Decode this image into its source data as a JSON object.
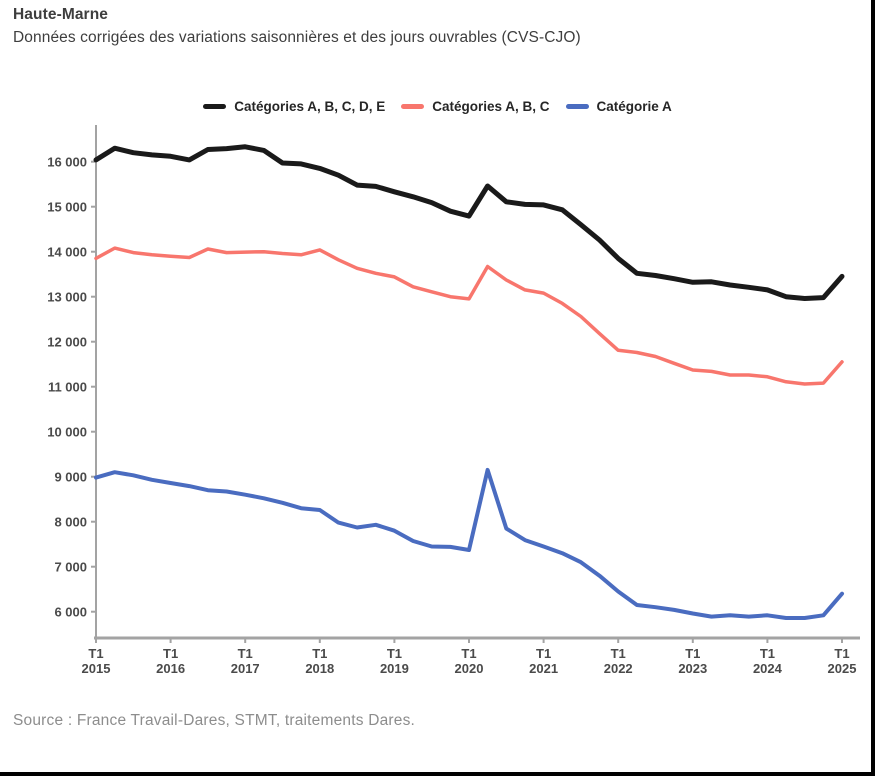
{
  "header": {
    "title": "Haute-Marne",
    "subtitle": "Données corrigées des variations saisonnières et des jours ouvrables (CVS-CJO)"
  },
  "legend": {
    "items": [
      {
        "label": "Catégories A, B, C, D, E",
        "color": "#1a1a1a"
      },
      {
        "label": "Catégories A, B, C",
        "color": "#f8766d"
      },
      {
        "label": "Catégorie A",
        "color": "#4a6cc0"
      }
    ]
  },
  "source": {
    "text": "Source : France Travail-Dares, STMT, traitements Dares."
  },
  "chart_data": {
    "type": "line",
    "grid": false,
    "legend_position": "top",
    "axis_color": "#a3a3a3",
    "tick_label_color": "#4a4a4a",
    "ylim": [
      5416,
      16816
    ],
    "y_ticks": [
      16000,
      15000,
      14000,
      13000,
      12000,
      11000,
      10000,
      9000,
      8000,
      7000,
      6000
    ],
    "y_tick_labels": [
      "16 000",
      "15 000",
      "14 000",
      "13 000",
      "12 000",
      "11 000",
      "10 000",
      "9 000",
      "8 000",
      "7 000",
      "6 000"
    ],
    "x_tick_labels": [
      {
        "quarter": "T1",
        "year": "2015"
      },
      {
        "quarter": "T1",
        "year": "2016"
      },
      {
        "quarter": "T1",
        "year": "2017"
      },
      {
        "quarter": "T1",
        "year": "2018"
      },
      {
        "quarter": "T1",
        "year": "2019"
      },
      {
        "quarter": "T1",
        "year": "2020"
      },
      {
        "quarter": "T1",
        "year": "2021"
      },
      {
        "quarter": "T1",
        "year": "2022"
      },
      {
        "quarter": "T1",
        "year": "2023"
      },
      {
        "quarter": "T1",
        "year": "2024"
      },
      {
        "quarter": "T1",
        "year": "2025"
      }
    ],
    "x": [
      "T1 2015",
      "T2 2015",
      "T3 2015",
      "T4 2015",
      "T1 2016",
      "T2 2016",
      "T3 2016",
      "T4 2016",
      "T1 2017",
      "T2 2017",
      "T3 2017",
      "T4 2017",
      "T1 2018",
      "T2 2018",
      "T3 2018",
      "T4 2018",
      "T1 2019",
      "T2 2019",
      "T3 2019",
      "T4 2019",
      "T1 2020",
      "T2 2020",
      "T3 2020",
      "T4 2020",
      "T1 2021",
      "T2 2021",
      "T3 2021",
      "T4 2021",
      "T1 2022",
      "T2 2022",
      "T3 2022",
      "T4 2022",
      "T1 2023",
      "T2 2023",
      "T3 2023",
      "T4 2023",
      "T1 2024",
      "T2 2024",
      "T3 2024",
      "T4 2024",
      "T1 2025"
    ],
    "series": [
      {
        "name": "Catégories A, B, C, D, E",
        "color": "#1a1a1a",
        "width": 5,
        "values": [
          16040,
          16300,
          16200,
          16150,
          16120,
          16040,
          16270,
          16290,
          16330,
          16250,
          15970,
          15950,
          15850,
          15700,
          15480,
          15450,
          15330,
          15220,
          15090,
          14900,
          14790,
          15460,
          15110,
          15050,
          15040,
          14930,
          14600,
          14260,
          13850,
          13520,
          13470,
          13400,
          13320,
          13330,
          13260,
          13210,
          13150,
          13000,
          12960,
          12980,
          13450
        ]
      },
      {
        "name": "Catégories A, B, C",
        "color": "#f8766d",
        "width": 3.5,
        "values": [
          13850,
          14080,
          13980,
          13930,
          13900,
          13870,
          14060,
          13980,
          13990,
          14000,
          13960,
          13930,
          14040,
          13820,
          13630,
          13520,
          13440,
          13220,
          13110,
          13000,
          12950,
          13670,
          13370,
          13150,
          13080,
          12850,
          12560,
          12180,
          11810,
          11760,
          11670,
          11520,
          11370,
          11340,
          11260,
          11260,
          11220,
          11110,
          11060,
          11080,
          11550
        ]
      },
      {
        "name": "Catégorie A",
        "color": "#4a6cc0",
        "width": 4,
        "values": [
          8980,
          9100,
          9030,
          8930,
          8860,
          8790,
          8700,
          8670,
          8600,
          8520,
          8420,
          8300,
          8260,
          7980,
          7870,
          7930,
          7800,
          7570,
          7450,
          7440,
          7370,
          9150,
          7850,
          7590,
          7450,
          7300,
          7100,
          6800,
          6450,
          6150,
          6100,
          6040,
          5960,
          5890,
          5920,
          5890,
          5920,
          5860,
          5860,
          5920,
          6400
        ]
      }
    ]
  }
}
